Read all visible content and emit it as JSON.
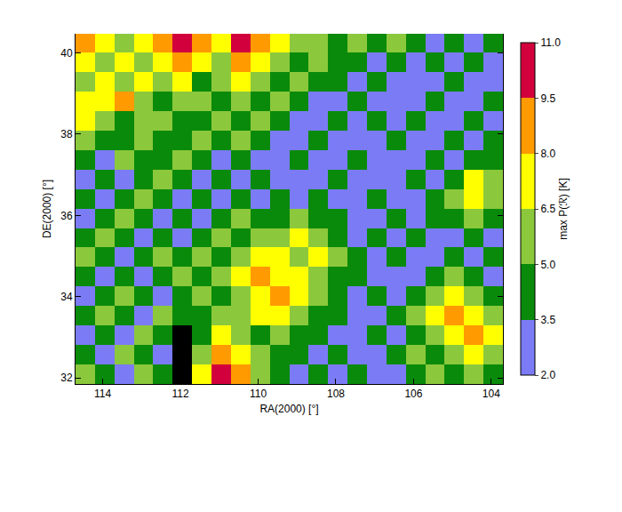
{
  "chart_data": {
    "type": "heatmap",
    "x_label": "RA(2000) [°]",
    "y_label": "DE(2000) [°]",
    "x": [
      114.45,
      113.95,
      113.45,
      112.95,
      112.45,
      111.95,
      111.45,
      110.95,
      110.45,
      109.95,
      109.45,
      108.95,
      108.45,
      107.95,
      107.45,
      106.95,
      106.45,
      105.95,
      105.45,
      104.95,
      104.45,
      103.95
    ],
    "y": [
      32.09,
      32.57,
      33.05,
      33.53,
      34.01,
      34.49,
      34.97,
      35.45,
      35.93,
      36.41,
      36.89,
      37.37,
      37.85,
      38.33,
      38.81,
      39.29,
      39.77,
      40.25
    ],
    "cells": [
      [
        5.8,
        4.3,
        3,
        5.8,
        4.3,
        null,
        7.2,
        10,
        8.7,
        5.8,
        4.3,
        3,
        4.3,
        3,
        4.3,
        3,
        3,
        4.3,
        5.8,
        4.3,
        5.8,
        4.3
      ],
      [
        4.3,
        3,
        5.8,
        4.3,
        3,
        null,
        5.8,
        8.7,
        7.2,
        5.8,
        4.3,
        4.3,
        3,
        4.3,
        3,
        3,
        4.3,
        5.8,
        4.3,
        5.8,
        7.2,
        5.8
      ],
      [
        3,
        4.3,
        3,
        5.8,
        4.3,
        null,
        4.3,
        7.2,
        5.8,
        4.3,
        5.8,
        4.3,
        4.3,
        3,
        3,
        4.3,
        3,
        4.3,
        5.8,
        7.2,
        8.7,
        7.2
      ],
      [
        4.3,
        5.8,
        4.3,
        3,
        5.8,
        4.3,
        4.3,
        5.8,
        5.8,
        7.2,
        7.2,
        5.8,
        4.3,
        4.3,
        3,
        3,
        4.3,
        5.8,
        7.2,
        8.7,
        7.2,
        5.8
      ],
      [
        3,
        4.3,
        5.8,
        4.3,
        3,
        4.3,
        5.8,
        4.3,
        5.8,
        7.2,
        8.7,
        7.2,
        5.8,
        4.3,
        3,
        4.3,
        3,
        4.3,
        5.8,
        7.2,
        5.8,
        4.3
      ],
      [
        4.3,
        3,
        4.3,
        3,
        4.3,
        5.8,
        4.3,
        5.8,
        7.2,
        8.7,
        7.2,
        7.2,
        5.8,
        4.3,
        4.3,
        3,
        3,
        3,
        4.3,
        5.8,
        4.3,
        3
      ],
      [
        5.8,
        4.3,
        3,
        4.3,
        5.8,
        4.3,
        5.8,
        4.3,
        5.8,
        7.2,
        7.2,
        5.8,
        7.2,
        5.8,
        4.3,
        3,
        4.3,
        3,
        3,
        4.3,
        3,
        4.3
      ],
      [
        4.3,
        5.8,
        4.3,
        3,
        4.3,
        3,
        4.3,
        5.8,
        4.3,
        5.8,
        5.8,
        7.2,
        5.8,
        4.3,
        3,
        4.3,
        3,
        4.3,
        3,
        3,
        4.3,
        3
      ],
      [
        3,
        4.3,
        5.8,
        4.3,
        3,
        4.3,
        3,
        4.3,
        5.8,
        4.3,
        4.3,
        5.8,
        4.3,
        4.3,
        3,
        3,
        4.3,
        3,
        4.3,
        4.3,
        5.8,
        4.3
      ],
      [
        4.3,
        3,
        4.3,
        5.8,
        4.3,
        3,
        4.3,
        3,
        4.3,
        3,
        4.3,
        3,
        4.3,
        3,
        3,
        4.3,
        3,
        3,
        4.3,
        5.8,
        7.2,
        5.8
      ],
      [
        3,
        4.3,
        3,
        4.3,
        5.8,
        4.3,
        3,
        4.3,
        3,
        4.3,
        3,
        3,
        3,
        4.3,
        3,
        3,
        3,
        4.3,
        3,
        4.3,
        7.2,
        5.8
      ],
      [
        4.3,
        3,
        5.8,
        4.3,
        4.3,
        5.8,
        4.3,
        3,
        4.3,
        3,
        3,
        4.3,
        3,
        3,
        4.3,
        3,
        3,
        3,
        4.3,
        3,
        4.3,
        4.3
      ],
      [
        5.8,
        4.3,
        4.3,
        5.8,
        4.3,
        4.3,
        5.8,
        4.3,
        5.8,
        4.3,
        3,
        3,
        4.3,
        3,
        3,
        3,
        4.3,
        3,
        3,
        4.3,
        3,
        4.3
      ],
      [
        7.2,
        5.8,
        4.3,
        5.8,
        5.8,
        4.3,
        4.3,
        5.8,
        4.3,
        5.8,
        4.3,
        3,
        3,
        4.3,
        3,
        4.3,
        3,
        4.3,
        3,
        3,
        4.3,
        3
      ],
      [
        7.2,
        7.2,
        8.7,
        5.8,
        4.3,
        5.8,
        5.8,
        4.3,
        5.8,
        4.3,
        5.8,
        4.3,
        3,
        3,
        4.3,
        3,
        3,
        3,
        4.3,
        3,
        3,
        4.3
      ],
      [
        5.8,
        7.2,
        5.8,
        7.2,
        5.8,
        7.2,
        4.3,
        5.8,
        7.2,
        5.8,
        4.3,
        5.8,
        4.3,
        4.3,
        3,
        4.3,
        3,
        3,
        3,
        4.3,
        3,
        3
      ],
      [
        7.2,
        5.8,
        7.2,
        5.8,
        7.2,
        8.7,
        7.2,
        5.8,
        8.7,
        7.2,
        5.8,
        4.3,
        5.8,
        4.3,
        4.3,
        3,
        4.3,
        3,
        4.3,
        3,
        4.3,
        3
      ],
      [
        8.7,
        7.2,
        5.8,
        7.2,
        8.7,
        10,
        8.7,
        7.2,
        10,
        8.7,
        7.2,
        5.8,
        5.8,
        4.3,
        5.8,
        4.3,
        5.8,
        4.3,
        3,
        4.3,
        3,
        4.3
      ]
    ],
    "xlim": [
      114.7,
      103.7
    ],
    "ylim": [
      31.85,
      40.47
    ],
    "xticks": [
      114,
      112,
      110,
      108,
      106,
      104
    ],
    "yticks": [
      32,
      34,
      36,
      38,
      40
    ],
    "colorbar": {
      "title": "max P(ℛ) [K]",
      "range": [
        2,
        11
      ],
      "ticks": [
        {
          "value": 2,
          "label": "2.0"
        },
        {
          "value": 3.5,
          "label": "3.5"
        },
        {
          "value": 5,
          "label": "5.0"
        },
        {
          "value": 6.5,
          "label": "6.5"
        },
        {
          "value": 8,
          "label": "8.0"
        },
        {
          "value": 9.5,
          "label": "9.5"
        },
        {
          "value": 11,
          "label": "11.0"
        }
      ],
      "colors": [
        "#7b7bf5",
        "#0a8a0a",
        "#8cc83c",
        "#ffff00",
        "#ff9a00",
        "#d2003c"
      ]
    }
  }
}
